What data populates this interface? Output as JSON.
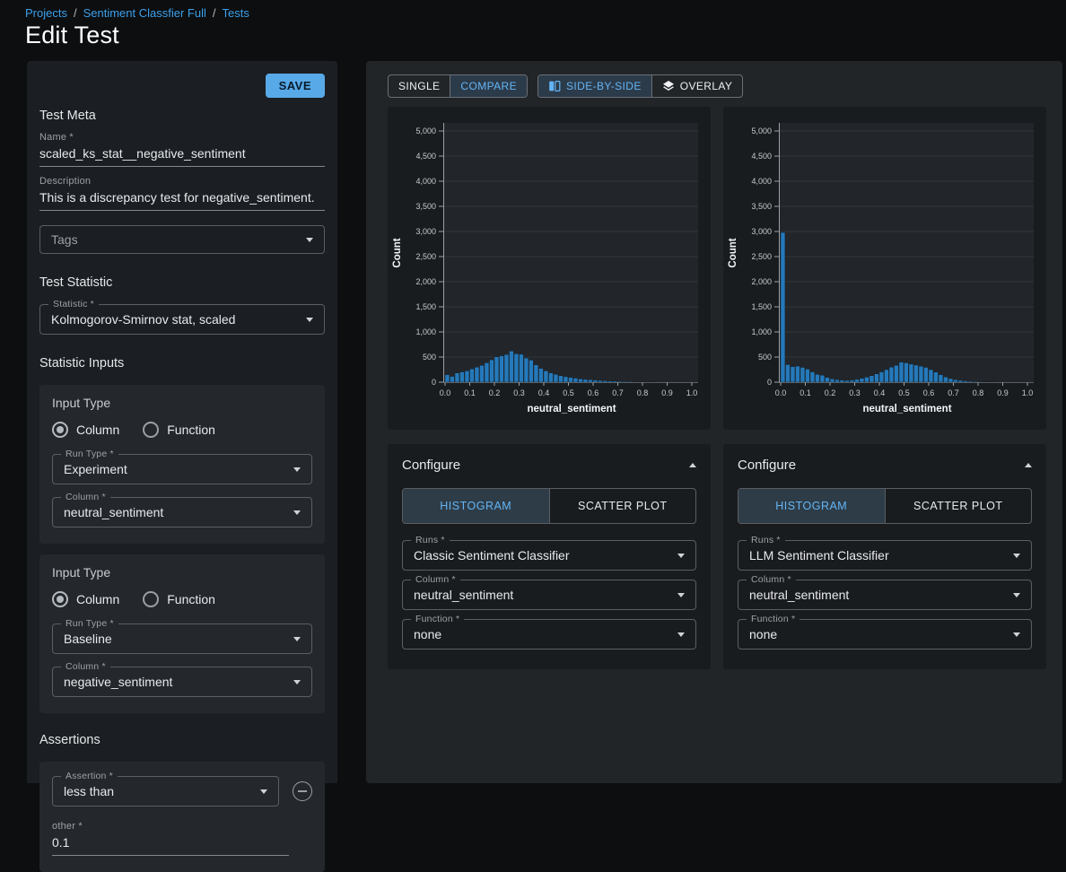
{
  "breadcrumb": {
    "items": [
      "Projects",
      "Sentiment Classfier Full",
      "Tests"
    ],
    "separator": "/"
  },
  "page_title": "Edit Test",
  "colors": {
    "accent_blue": "#64b5f6",
    "link_blue": "#3da0ea",
    "save_button": "#58a9e8",
    "bar_fill": "#2579ba"
  },
  "left_panel": {
    "save_label": "SAVE",
    "section_test_meta": "Test Meta",
    "name_label": "Name *",
    "name_value": "scaled_ks_stat__negative_sentiment",
    "description_label": "Description",
    "description_value": "This is a discrepancy test for negative_sentiment.",
    "tags_placeholder": "Tags",
    "section_test_statistic": "Test Statistic",
    "statistic_label": "Statistic *",
    "statistic_value": "Kolmogorov-Smirnov stat, scaled",
    "section_statistic_inputs": "Statistic Inputs",
    "input_cards": [
      {
        "title": "Input Type",
        "radio_options": [
          "Column",
          "Function"
        ],
        "radio_selected": "Column",
        "run_type_label": "Run Type *",
        "run_type_value": "Experiment",
        "column_label": "Column *",
        "column_value": "neutral_sentiment"
      },
      {
        "title": "Input Type",
        "radio_options": [
          "Column",
          "Function"
        ],
        "radio_selected": "Column",
        "run_type_label": "Run Type *",
        "run_type_value": "Baseline",
        "column_label": "Column *",
        "column_value": "negative_sentiment"
      }
    ],
    "section_assertions": "Assertions",
    "assertion": {
      "assertion_label": "Assertion *",
      "assertion_value": "less than",
      "other_label": "other *",
      "other_value": "0.1"
    }
  },
  "right_panel": {
    "view_toggle": {
      "options": [
        "SINGLE",
        "COMPARE"
      ],
      "selected": "COMPARE"
    },
    "layout_toggle": {
      "options": [
        "SIDE-BY-SIDE",
        "OVERLAY"
      ],
      "selected": "SIDE-BY-SIDE",
      "icons": [
        "side-by-side-icon",
        "overlay-layers-icon"
      ]
    },
    "panes": [
      {
        "configure_title": "Configure",
        "tabs": [
          "HISTOGRAM",
          "SCATTER PLOT"
        ],
        "active_tab": "HISTOGRAM",
        "runs_label": "Runs *",
        "runs_value": "Classic Sentiment Classifier",
        "column_label": "Column *",
        "column_value": "neutral_sentiment",
        "function_label": "Function *",
        "function_value": "none"
      },
      {
        "configure_title": "Configure",
        "tabs": [
          "HISTOGRAM",
          "SCATTER PLOT"
        ],
        "active_tab": "HISTOGRAM",
        "runs_label": "Runs *",
        "runs_value": "LLM Sentiment Classifier",
        "column_label": "Column *",
        "column_value": "neutral_sentiment",
        "function_label": "Function *",
        "function_value": "none"
      }
    ]
  },
  "chart_data": [
    {
      "type": "bar",
      "title": "",
      "run": "Classic Sentiment Classifier",
      "xlabel": "neutral_sentiment",
      "ylabel": "Count",
      "xlim": [
        0.0,
        1.0
      ],
      "ylim": [
        0,
        5000
      ],
      "grid": "horizontal",
      "legend_position": "none",
      "xtick_labels": [
        "0.0",
        "0.1",
        "0.2",
        "0.3",
        "0.4",
        "0.5",
        "0.6",
        "0.7",
        "0.8",
        "0.9",
        "1.0"
      ],
      "ytick_labels": [
        "0",
        "500",
        "1,000",
        "1,500",
        "2,000",
        "2,500",
        "3,000",
        "3,500",
        "4,000",
        "4,500",
        "5,000"
      ],
      "bin_width": 0.02,
      "bin_start": 0.0,
      "counts": [
        150,
        115,
        185,
        205,
        225,
        265,
        300,
        335,
        385,
        445,
        505,
        525,
        550,
        620,
        565,
        555,
        480,
        440,
        345,
        275,
        225,
        185,
        155,
        130,
        110,
        95,
        80,
        65,
        55,
        48,
        40,
        34,
        28,
        24,
        20,
        17,
        14,
        11,
        9,
        7,
        6,
        5,
        4,
        3,
        3,
        2,
        2,
        1,
        1,
        1
      ]
    },
    {
      "type": "bar",
      "title": "",
      "run": "LLM Sentiment Classifier",
      "xlabel": "neutral_sentiment",
      "ylabel": "Count",
      "xlim": [
        0.0,
        1.0
      ],
      "ylim": [
        0,
        5000
      ],
      "grid": "horizontal",
      "legend_position": "none",
      "xtick_labels": [
        "0.0",
        "0.1",
        "0.2",
        "0.3",
        "0.4",
        "0.5",
        "0.6",
        "0.7",
        "0.8",
        "0.9",
        "1.0"
      ],
      "ytick_labels": [
        "0",
        "500",
        "1,000",
        "1,500",
        "2,000",
        "2,500",
        "3,000",
        "3,500",
        "4,000",
        "4,500",
        "5,000"
      ],
      "bin_width": 0.02,
      "bin_start": 0.0,
      "counts": [
        2980,
        350,
        310,
        320,
        295,
        260,
        205,
        155,
        140,
        95,
        65,
        50,
        40,
        35,
        40,
        55,
        75,
        100,
        130,
        165,
        205,
        250,
        300,
        335,
        400,
        385,
        360,
        340,
        318,
        295,
        250,
        200,
        150,
        105,
        72,
        50,
        36,
        26,
        18,
        13,
        10,
        8,
        6,
        4,
        3,
        2,
        2,
        1,
        1,
        1
      ]
    }
  ]
}
